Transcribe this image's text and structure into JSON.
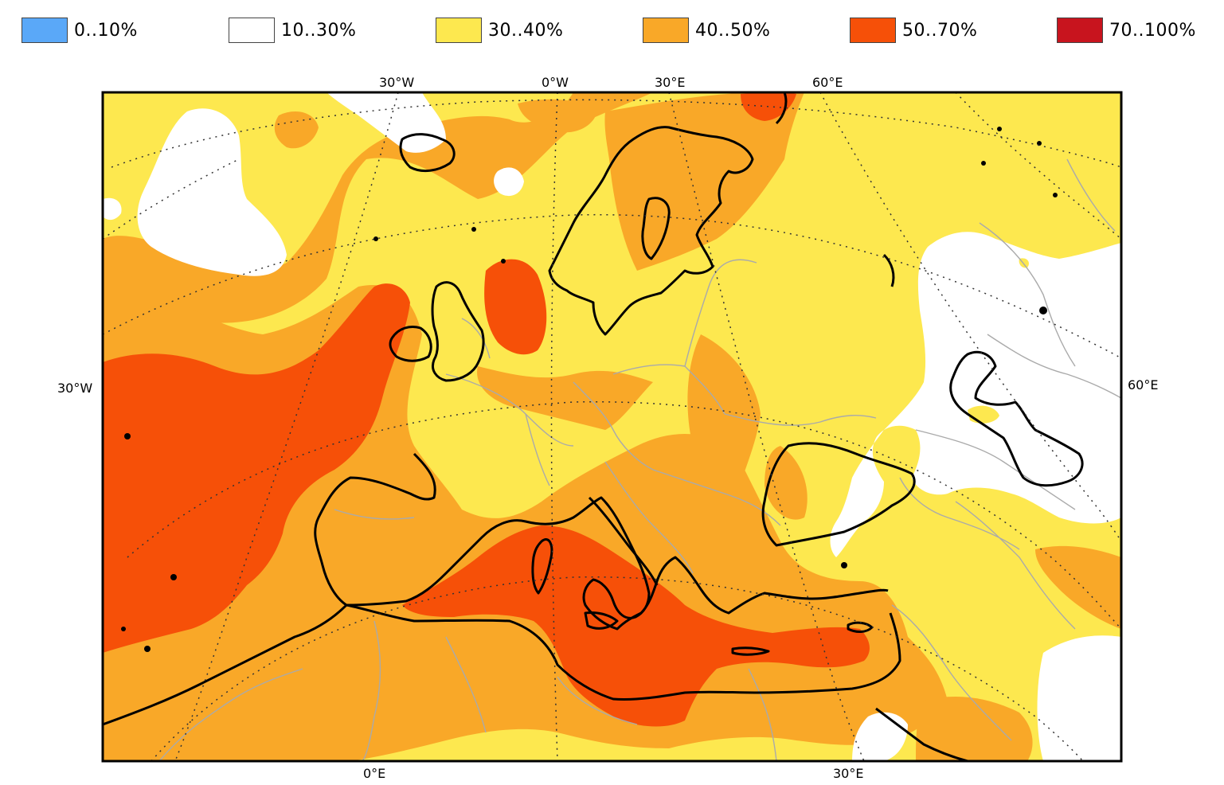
{
  "legend": {
    "items": [
      {
        "label": "0..10%",
        "color": "#5aa8f8"
      },
      {
        "label": "10..30%",
        "color": "#ffffff"
      },
      {
        "label": "30..40%",
        "color": "#fde84f"
      },
      {
        "label": "40..50%",
        "color": "#f9a828"
      },
      {
        "label": "50..70%",
        "color": "#f65008"
      },
      {
        "label": "70..100%",
        "color": "#c8141e"
      }
    ]
  },
  "axes": {
    "top": [
      "30°W",
      "0°W",
      "30°E",
      "60°E"
    ],
    "left": [
      "30°W"
    ],
    "right": [
      "60°E"
    ],
    "bottom": [
      "0°E",
      "30°E"
    ]
  },
  "colors": {
    "frame": "#000000",
    "coast": "#000000",
    "border": "#aaaaaa",
    "graticule": "#333333"
  }
}
